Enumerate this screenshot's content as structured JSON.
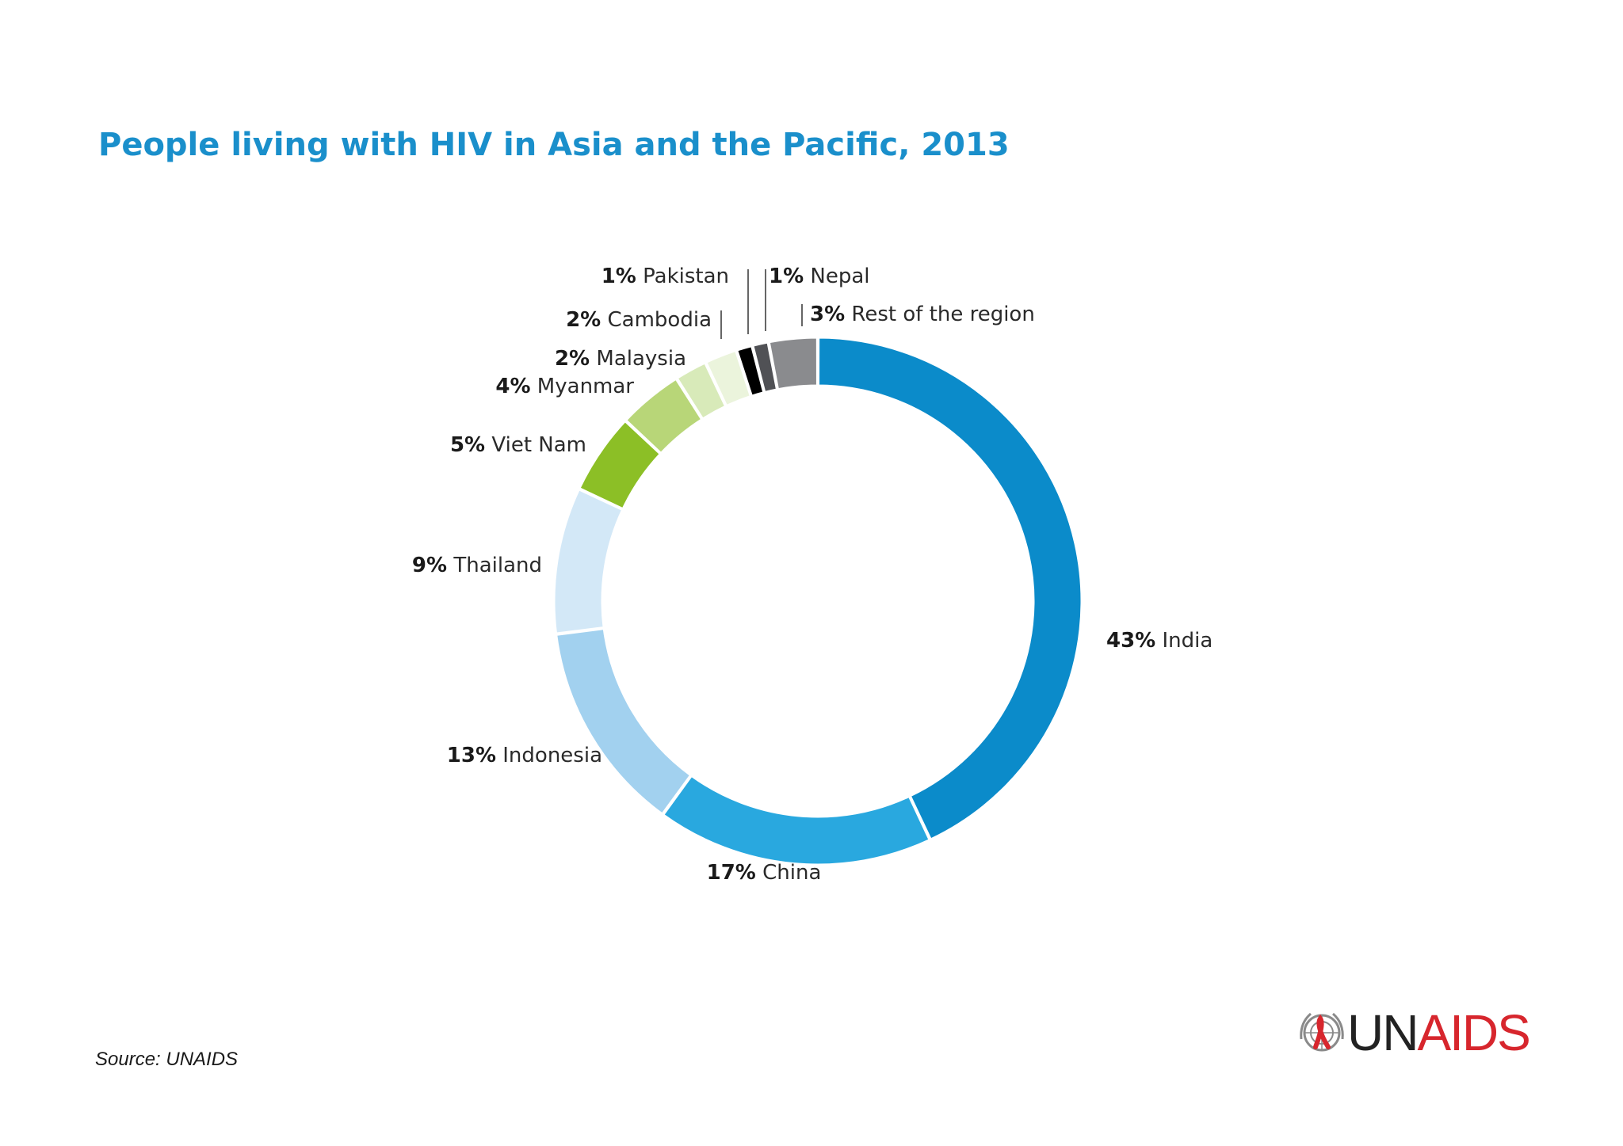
{
  "title": "People living with HIV in Asia and the Pacific, 2013",
  "source": "Source: UNAIDS",
  "logo": {
    "part1": "UN",
    "part2": "AIDS"
  },
  "chart_data": {
    "type": "pie",
    "style": "donut",
    "start_angle_deg": 0,
    "direction": "clockwise",
    "slices": [
      {
        "label": "India",
        "pct_label": "43%",
        "value": 43,
        "color": "#0b8bca"
      },
      {
        "label": "China",
        "pct_label": "17%",
        "value": 17,
        "color": "#29a8df"
      },
      {
        "label": "Indonesia",
        "pct_label": "13%",
        "value": 13,
        "color": "#a2d1ef"
      },
      {
        "label": "Thailand",
        "pct_label": "9%",
        "value": 9,
        "color": "#d3e8f7"
      },
      {
        "label": "Viet Nam",
        "pct_label": "5%",
        "value": 5,
        "color": "#8cbf26"
      },
      {
        "label": "Myanmar",
        "pct_label": "4%",
        "value": 4,
        "color": "#b8d678"
      },
      {
        "label": "Malaysia",
        "pct_label": "2%",
        "value": 2,
        "color": "#d8eab9"
      },
      {
        "label": "Cambodia",
        "pct_label": "2%",
        "value": 2,
        "color": "#ebf4dc"
      },
      {
        "label": "Pakistan",
        "pct_label": "1%",
        "value": 1,
        "color": "#000000"
      },
      {
        "label": "Nepal",
        "pct_label": "1%",
        "value": 1,
        "color": "#505155"
      },
      {
        "label": "Rest of the region",
        "pct_label": "3%",
        "value": 3,
        "color": "#8a8b8e"
      }
    ]
  }
}
